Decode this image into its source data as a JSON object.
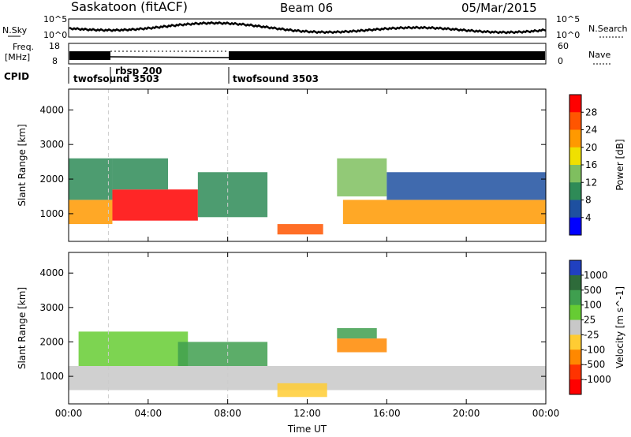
{
  "header": {
    "station": "Saskatoon (fitACF)",
    "beam": "Beam 06",
    "date": "05/Mar/2015"
  },
  "top_panels": {
    "nsky_label": "N.Sky",
    "nsky_ticks": [
      "10^5",
      "10^0"
    ],
    "nsearch_label": "N.Search",
    "nsearch_ticks": [
      "10^5",
      "10^0"
    ],
    "freq_label_1": "Freq.",
    "freq_label_2": "[MHz]",
    "freq_ticks": [
      "18",
      "8"
    ],
    "nave_label": "Nave",
    "nave_ticks": [
      "60",
      "0"
    ],
    "cpid_label": "CPID",
    "cpid_segments": [
      {
        "label": "twofsound 3503",
        "start_hour": 0
      },
      {
        "label": "rbsp 200",
        "start_hour": 2
      },
      {
        "label": "twofsound 3503",
        "start_hour": 8
      }
    ]
  },
  "chart_data": [
    {
      "type": "heatmap",
      "title": "Power",
      "ylabel": "Slant Range [km]",
      "xlabel": "",
      "xlim": [
        0,
        24
      ],
      "ylim": [
        200,
        4600
      ],
      "x_ticks": [
        0,
        4,
        8,
        12,
        16,
        20,
        24
      ],
      "y_ticks": [
        1000,
        2000,
        3000,
        4000
      ],
      "colorbar": {
        "label": "Power [dB]",
        "ticks": [
          "4",
          "8",
          "12",
          "16",
          "20",
          "24",
          "28"
        ],
        "colors": [
          "#0000ff",
          "#1e50a0",
          "#2e8b57",
          "#7fbf5f",
          "#f0e000",
          "#ff9900",
          "#ff5500",
          "#ff0000"
        ]
      },
      "regions": [
        {
          "x0": 0.0,
          "x1": 2.2,
          "y0": 700,
          "y1": 1400,
          "level": 5
        },
        {
          "x0": 0.0,
          "x1": 2.2,
          "y0": 1400,
          "y1": 2600,
          "level": 2
        },
        {
          "x0": 2.2,
          "x1": 6.5,
          "y0": 800,
          "y1": 1700,
          "level": 7
        },
        {
          "x0": 2.2,
          "x1": 5.0,
          "y0": 1700,
          "y1": 2600,
          "level": 2
        },
        {
          "x0": 6.5,
          "x1": 10.0,
          "y0": 900,
          "y1": 2200,
          "level": 2
        },
        {
          "x0": 10.5,
          "x1": 12.8,
          "y0": 400,
          "y1": 700,
          "level": 6
        },
        {
          "x0": 13.5,
          "x1": 16.0,
          "y0": 1500,
          "y1": 2600,
          "level": 3
        },
        {
          "x0": 13.8,
          "x1": 24.0,
          "y0": 700,
          "y1": 1400,
          "level": 5
        },
        {
          "x0": 16.0,
          "x1": 24.0,
          "y0": 1400,
          "y1": 2200,
          "level": 1
        }
      ]
    },
    {
      "type": "heatmap",
      "title": "Velocity",
      "ylabel": "Slant Range [km]",
      "xlabel": "Time UT",
      "xlim": [
        0,
        24
      ],
      "ylim": [
        200,
        4600
      ],
      "x_ticks": [
        0,
        4,
        8,
        12,
        16,
        20,
        24
      ],
      "x_tick_labels": [
        "00:00",
        "04:00",
        "08:00",
        "12:00",
        "16:00",
        "20:00",
        "00:00"
      ],
      "y_ticks": [
        1000,
        2000,
        3000,
        4000
      ],
      "colorbar": {
        "label": "Velocity [m s^-1]",
        "ticks": [
          "1000",
          "500",
          "100",
          "25",
          "-25",
          "-100",
          "-500",
          "-1000"
        ],
        "colors": [
          "#2040c0",
          "#2e6b3a",
          "#3f9f4f",
          "#66cc33",
          "#c8c8c8",
          "#ffcc33",
          "#ff8800",
          "#ff3300",
          "#ff0000"
        ]
      },
      "regions": [
        {
          "x0": 0.0,
          "x1": 24.0,
          "y0": 600,
          "y1": 1300,
          "level": 4
        },
        {
          "x0": 0.5,
          "x1": 6.0,
          "y0": 1300,
          "y1": 2300,
          "level": 3
        },
        {
          "x0": 5.5,
          "x1": 10.0,
          "y0": 1300,
          "y1": 2000,
          "level": 2
        },
        {
          "x0": 10.5,
          "x1": 13.0,
          "y0": 400,
          "y1": 800,
          "level": 5
        },
        {
          "x0": 13.5,
          "x1": 16.0,
          "y0": 1700,
          "y1": 2100,
          "level": 6
        },
        {
          "x0": 13.5,
          "x1": 15.5,
          "y0": 2100,
          "y1": 2400,
          "level": 2
        }
      ]
    }
  ]
}
